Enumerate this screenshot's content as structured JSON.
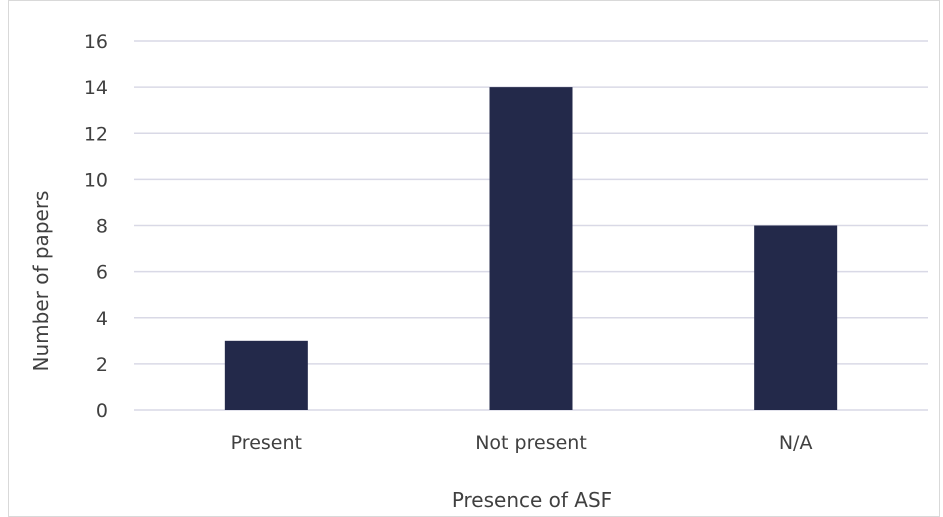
{
  "chart_data": {
    "type": "bar",
    "categories": [
      "Present",
      "Not present",
      "N/A"
    ],
    "values": [
      3,
      14,
      8
    ],
    "title": "",
    "xlabel": "Presence of ASF",
    "ylabel": "Number of papers",
    "ylim": [
      0,
      16
    ],
    "yticks": [
      0,
      2,
      4,
      6,
      8,
      10,
      12,
      14,
      16
    ],
    "grid": true,
    "legend": "none",
    "bar_color": "#23294a",
    "grid_color": "#d9d9e6"
  }
}
